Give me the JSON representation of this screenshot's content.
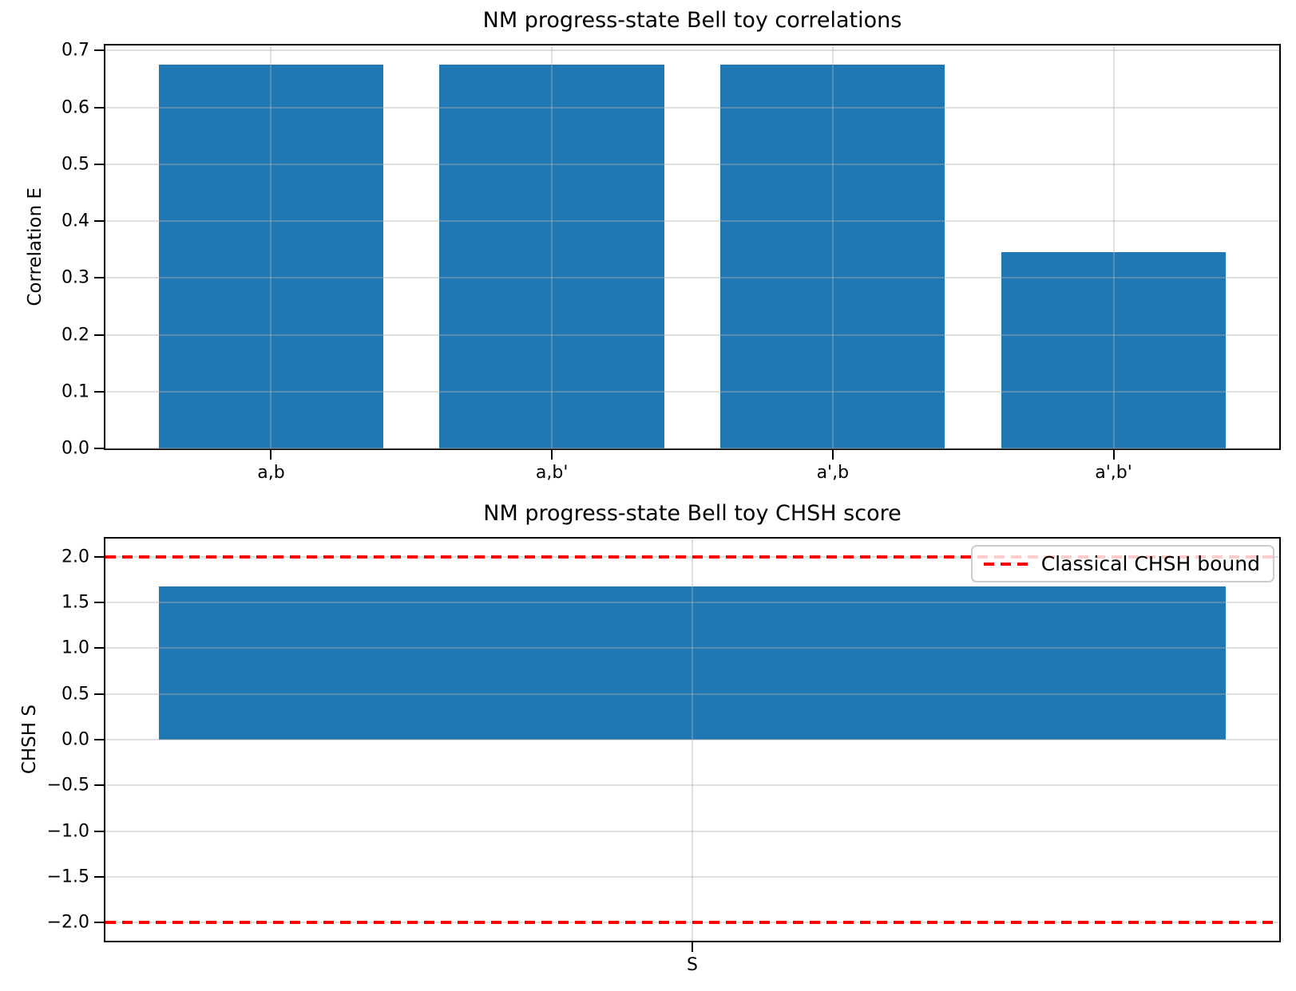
{
  "figure": {
    "background": "#ffffff",
    "text_color": "#000000",
    "grid_color": "#b0b0b0"
  },
  "chart_data": [
    {
      "type": "bar",
      "title": "NM progress-state Bell toy correlations",
      "ylabel": "Correlation E",
      "xlabel": "",
      "categories": [
        "a,b",
        "a,b'",
        "a',b",
        "a',b'"
      ],
      "values": [
        0.675,
        0.675,
        0.675,
        0.346
      ],
      "bar_color": "#1f77b4",
      "ylim": [
        0,
        0.709
      ],
      "grid": true,
      "yticks": [
        {
          "value": 0.0,
          "label": "0.0"
        },
        {
          "value": 0.1,
          "label": "0.1"
        },
        {
          "value": 0.2,
          "label": "0.2"
        },
        {
          "value": 0.3,
          "label": "0.3"
        },
        {
          "value": 0.4,
          "label": "0.4"
        },
        {
          "value": 0.5,
          "label": "0.5"
        },
        {
          "value": 0.6,
          "label": "0.6"
        },
        {
          "value": 0.7,
          "label": "0.7"
        }
      ]
    },
    {
      "type": "bar",
      "title": "NM progress-state Bell toy CHSH score",
      "ylabel": "CHSH S",
      "xlabel": "",
      "categories": [
        "S"
      ],
      "values": [
        1.679
      ],
      "bar_color": "#1f77b4",
      "ylim": [
        -2.2,
        2.2
      ],
      "grid": true,
      "yticks": [
        {
          "value": 2.0,
          "label": "2.0"
        },
        {
          "value": 1.5,
          "label": "1.5"
        },
        {
          "value": 1.0,
          "label": "1.0"
        },
        {
          "value": 0.5,
          "label": "0.5"
        },
        {
          "value": 0.0,
          "label": "0.0"
        },
        {
          "value": -0.5,
          "label": "−0.5"
        },
        {
          "value": -1.0,
          "label": "−1.0"
        },
        {
          "value": -1.5,
          "label": "−1.5"
        },
        {
          "value": -2.0,
          "label": "−2.0"
        }
      ],
      "hlines": [
        {
          "y": 2.0,
          "color": "#ff0000",
          "style": "dashed"
        },
        {
          "y": -2.0,
          "color": "#ff0000",
          "style": "dashed"
        }
      ],
      "legend": {
        "position": "upper right",
        "entries": [
          {
            "label": "Classical CHSH bound",
            "color": "#ff0000",
            "style": "dashed"
          }
        ]
      }
    }
  ]
}
